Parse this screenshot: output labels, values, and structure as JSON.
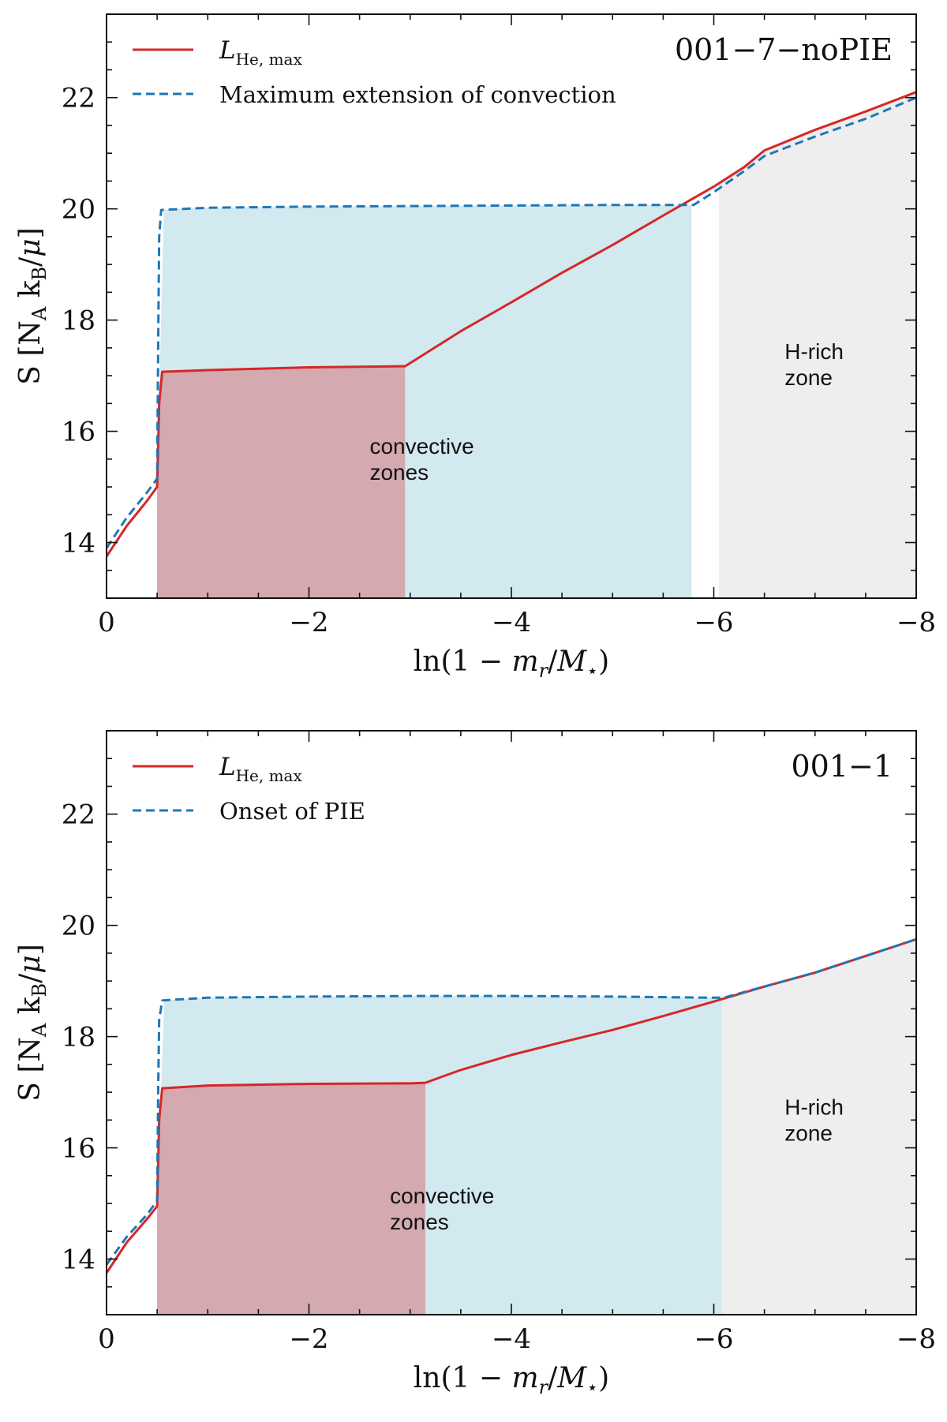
{
  "chart_data": [
    {
      "type": "line",
      "title": "001−7−noPIE",
      "xlabel": "ln(1 − m_r/M_⋆)",
      "ylabel": "S [N_A k_B/μ]",
      "xlim": [
        0,
        -8
      ],
      "ylim": [
        13,
        23.5
      ],
      "xticks": [
        0,
        -2,
        -4,
        -6,
        -8
      ],
      "xtick_labels": [
        "0",
        "−2",
        "−4",
        "−6",
        "−8"
      ],
      "yticks": [
        14,
        16,
        18,
        20,
        22
      ],
      "ytick_labels": [
        "14",
        "16",
        "18",
        "20",
        "22"
      ],
      "legend_position": "top-left",
      "legend": [
        {
          "label": "L_He,max",
          "color": "#d62728",
          "style": "solid"
        },
        {
          "label": "Maximum extension of convection",
          "color": "#1f77b4",
          "style": "dashed"
        }
      ],
      "series": [
        {
          "name": "L_He,max",
          "color": "#d62728",
          "style": "solid",
          "x": [
            0,
            -0.2,
            -0.4,
            -0.5,
            -0.52,
            -0.55,
            -1.0,
            -2.0,
            -2.95,
            -3.5,
            -4.0,
            -4.5,
            -5.0,
            -5.5,
            -6.0,
            -6.3,
            -6.5,
            -7.0,
            -7.5,
            -8.0
          ],
          "y": [
            13.75,
            14.3,
            14.75,
            15.0,
            16.5,
            17.07,
            17.1,
            17.15,
            17.17,
            17.8,
            18.32,
            18.85,
            19.35,
            19.88,
            20.4,
            20.75,
            21.05,
            21.42,
            21.75,
            22.1
          ]
        },
        {
          "name": "Maximum extension of convection",
          "color": "#1f77b4",
          "style": "dashed",
          "x": [
            0,
            -0.2,
            -0.4,
            -0.5,
            -0.51,
            -0.52,
            -0.54,
            -1.0,
            -2.0,
            -3.0,
            -4.0,
            -5.0,
            -5.8,
            -6.0,
            -6.3,
            -6.5,
            -7.0,
            -7.5,
            -8.0
          ],
          "y": [
            13.9,
            14.45,
            14.9,
            15.15,
            17.5,
            19.5,
            19.98,
            20.02,
            20.04,
            20.05,
            20.06,
            20.07,
            20.07,
            20.3,
            20.68,
            20.95,
            21.3,
            21.62,
            22.0
          ]
        }
      ],
      "shaded_regions": [
        {
          "name": "convective-core",
          "color": "#d4a9b0",
          "x_from": -0.5,
          "x_to": -2.95,
          "bound": "L_He,max"
        },
        {
          "name": "convective-zone",
          "color": "#d3e9f0",
          "x_from": -0.5,
          "x_to": -5.78,
          "bound": "Maximum extension of convection"
        },
        {
          "name": "h-rich-zone",
          "color": "#eeeeee",
          "x_from": -6.05,
          "x_to": -8.0,
          "bound": "L_He,max"
        }
      ],
      "annotations": [
        {
          "text": [
            "convective",
            "zones"
          ],
          "x": -2.6,
          "y": 15.6
        },
        {
          "text": [
            "H-rich",
            "zone"
          ],
          "x": -6.7,
          "y": 17.3
        }
      ]
    },
    {
      "type": "line",
      "title": "001−1",
      "xlabel": "ln(1 − m_r/M_⋆)",
      "ylabel": "S [N_A k_B/μ]",
      "xlim": [
        0,
        -8
      ],
      "ylim": [
        13,
        23.5
      ],
      "xticks": [
        0,
        -2,
        -4,
        -6,
        -8
      ],
      "xtick_labels": [
        "0",
        "−2",
        "−4",
        "−6",
        "−8"
      ],
      "yticks": [
        14,
        16,
        18,
        20,
        22
      ],
      "ytick_labels": [
        "14",
        "16",
        "18",
        "20",
        "22"
      ],
      "legend_position": "top-left",
      "legend": [
        {
          "label": "L_He,max",
          "color": "#d62728",
          "style": "solid"
        },
        {
          "label": "Onset of PIE",
          "color": "#1f77b4",
          "style": "dashed"
        }
      ],
      "series": [
        {
          "name": "L_He,max",
          "color": "#d62728",
          "style": "solid",
          "x": [
            0,
            -0.2,
            -0.4,
            -0.5,
            -0.52,
            -0.55,
            -1.0,
            -2.0,
            -3.0,
            -3.15,
            -3.5,
            -4.0,
            -4.5,
            -5.0,
            -5.5,
            -6.0,
            -6.5,
            -7.0,
            -7.5,
            -8.0
          ],
          "y": [
            13.75,
            14.3,
            14.72,
            14.95,
            16.5,
            17.07,
            17.12,
            17.15,
            17.16,
            17.17,
            17.4,
            17.67,
            17.9,
            18.12,
            18.37,
            18.63,
            18.9,
            19.15,
            19.45,
            19.75
          ]
        },
        {
          "name": "Onset of PIE",
          "color": "#1f77b4",
          "style": "dashed",
          "x": [
            0,
            -0.2,
            -0.4,
            -0.5,
            -0.51,
            -0.52,
            -0.55,
            -1.0,
            -2.0,
            -3.0,
            -4.0,
            -5.0,
            -6.0,
            -6.1,
            -6.5,
            -7.0,
            -7.5,
            -8.0
          ],
          "y": [
            13.9,
            14.4,
            14.8,
            15.05,
            17.0,
            18.3,
            18.65,
            18.7,
            18.72,
            18.73,
            18.73,
            18.72,
            18.7,
            18.7,
            18.9,
            19.15,
            19.45,
            19.75
          ]
        }
      ],
      "shaded_regions": [
        {
          "name": "convective-core",
          "color": "#d4a9b0",
          "x_from": -0.5,
          "x_to": -3.15,
          "bound": "L_He,max"
        },
        {
          "name": "convective-zone",
          "color": "#d3e9f0",
          "x_from": -0.5,
          "x_to": -6.08,
          "bound": "Onset of PIE"
        },
        {
          "name": "h-rich-zone",
          "color": "#eeeeee",
          "x_from": -6.08,
          "x_to": -8.0,
          "bound": "L_He,max"
        }
      ],
      "annotations": [
        {
          "text": [
            "convective",
            "zones"
          ],
          "x": -2.8,
          "y": 15.0
        },
        {
          "text": [
            "H-rich",
            "zone"
          ],
          "x": -6.7,
          "y": 16.6
        }
      ]
    }
  ]
}
